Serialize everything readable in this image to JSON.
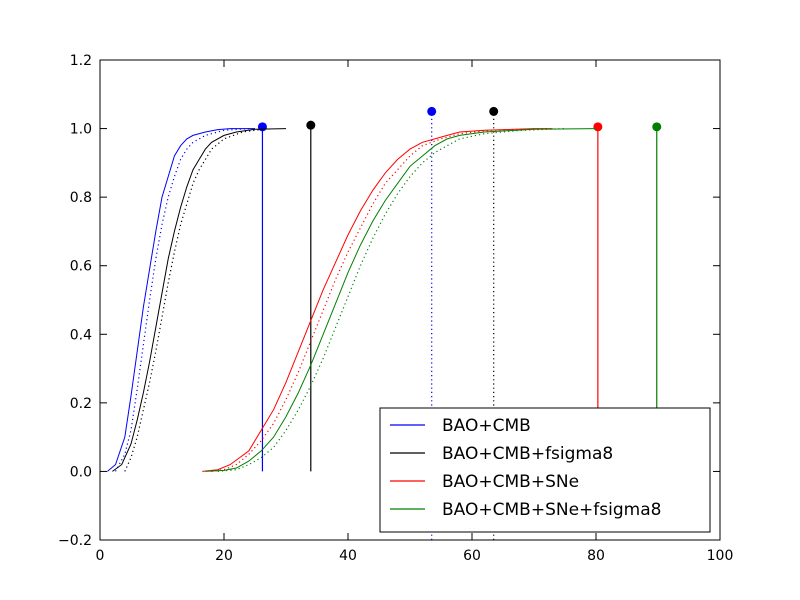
{
  "chart_data": {
    "type": "line",
    "title": "",
    "xlabel": "",
    "ylabel": "",
    "xlim": [
      0,
      100
    ],
    "ylim": [
      -0.2,
      1.2
    ],
    "x_ticks": [
      "0",
      "20",
      "40",
      "60",
      "80",
      "100"
    ],
    "y_ticks": [
      "−0.2",
      "0.0",
      "0.2",
      "0.4",
      "0.6",
      "0.8",
      "1.0",
      "1.2"
    ],
    "legend_position": "lower-right",
    "series": [
      {
        "name": "BAO+CMB",
        "color": "#0000ff",
        "solid": [
          [
            1.2,
            0
          ],
          [
            2.5,
            0.02
          ],
          [
            4,
            0.1
          ],
          [
            5,
            0.22
          ],
          [
            6,
            0.35
          ],
          [
            7,
            0.48
          ],
          [
            8,
            0.59
          ],
          [
            9,
            0.7
          ],
          [
            10,
            0.8
          ],
          [
            11,
            0.86
          ],
          [
            12,
            0.92
          ],
          [
            13,
            0.95
          ],
          [
            14,
            0.97
          ],
          [
            15,
            0.98
          ],
          [
            17,
            0.99
          ],
          [
            19,
            0.997
          ],
          [
            21,
            1.0
          ],
          [
            25,
            1.0
          ]
        ],
        "dotted": [
          [
            2.5,
            0
          ],
          [
            4,
            0.05
          ],
          [
            5,
            0.12
          ],
          [
            6,
            0.24
          ],
          [
            7,
            0.37
          ],
          [
            8,
            0.5
          ],
          [
            9,
            0.62
          ],
          [
            10,
            0.72
          ],
          [
            11,
            0.8
          ],
          [
            12,
            0.86
          ],
          [
            13,
            0.91
          ],
          [
            14,
            0.94
          ],
          [
            15,
            0.96
          ],
          [
            17,
            0.98
          ],
          [
            20,
            0.995
          ],
          [
            24,
            1.0
          ]
        ],
        "marker_solid": {
          "x": 26.2,
          "y": 1.005
        },
        "marker_dotted": {
          "x": 53.5,
          "y": 1.05
        }
      },
      {
        "name": "BAO+CMB+fsigma8",
        "color": "#000000",
        "solid": [
          [
            2,
            0
          ],
          [
            3.5,
            0.02
          ],
          [
            5,
            0.08
          ],
          [
            6,
            0.15
          ],
          [
            7,
            0.23
          ],
          [
            8,
            0.32
          ],
          [
            9,
            0.42
          ],
          [
            10,
            0.52
          ],
          [
            11,
            0.62
          ],
          [
            12,
            0.7
          ],
          [
            13,
            0.77
          ],
          [
            14,
            0.83
          ],
          [
            15,
            0.88
          ],
          [
            16,
            0.91
          ],
          [
            17,
            0.94
          ],
          [
            18,
            0.96
          ],
          [
            20,
            0.98
          ],
          [
            22,
            0.99
          ],
          [
            25,
            0.998
          ],
          [
            30,
            1.0
          ]
        ],
        "dotted": [
          [
            4,
            0
          ],
          [
            5,
            0.04
          ],
          [
            6,
            0.1
          ],
          [
            7,
            0.18
          ],
          [
            8,
            0.26
          ],
          [
            9,
            0.35
          ],
          [
            10,
            0.45
          ],
          [
            11,
            0.55
          ],
          [
            12,
            0.64
          ],
          [
            13,
            0.72
          ],
          [
            14,
            0.78
          ],
          [
            15,
            0.84
          ],
          [
            16,
            0.88
          ],
          [
            17,
            0.91
          ],
          [
            18,
            0.94
          ],
          [
            20,
            0.97
          ],
          [
            23,
            0.99
          ],
          [
            27,
            1.0
          ]
        ],
        "marker_solid": {
          "x": 34,
          "y": 1.01
        },
        "marker_dotted": {
          "x": 63.5,
          "y": 1.05
        }
      },
      {
        "name": "BAO+CMB+SNe",
        "color": "#ff0000",
        "solid": [
          [
            16.5,
            0
          ],
          [
            19,
            0.005
          ],
          [
            21,
            0.02
          ],
          [
            24,
            0.06
          ],
          [
            26,
            0.12
          ],
          [
            28,
            0.18
          ],
          [
            30,
            0.26
          ],
          [
            32,
            0.35
          ],
          [
            34,
            0.44
          ],
          [
            36,
            0.53
          ],
          [
            38,
            0.61
          ],
          [
            40,
            0.69
          ],
          [
            42,
            0.76
          ],
          [
            44,
            0.82
          ],
          [
            46,
            0.87
          ],
          [
            48,
            0.91
          ],
          [
            50,
            0.94
          ],
          [
            52,
            0.96
          ],
          [
            54,
            0.97
          ],
          [
            56,
            0.98
          ],
          [
            58,
            0.99
          ],
          [
            62,
            0.995
          ],
          [
            70,
            1.0
          ],
          [
            73,
            1.0
          ]
        ],
        "dotted": [
          [
            18,
            0
          ],
          [
            20,
            0.005
          ],
          [
            22,
            0.02
          ],
          [
            24,
            0.05
          ],
          [
            26,
            0.09
          ],
          [
            28,
            0.14
          ],
          [
            30,
            0.21
          ],
          [
            32,
            0.29
          ],
          [
            34,
            0.38
          ],
          [
            36,
            0.47
          ],
          [
            38,
            0.56
          ],
          [
            40,
            0.64
          ],
          [
            42,
            0.71
          ],
          [
            44,
            0.78
          ],
          [
            46,
            0.84
          ],
          [
            48,
            0.88
          ],
          [
            50,
            0.92
          ],
          [
            52,
            0.95
          ],
          [
            55,
            0.97
          ],
          [
            58,
            0.985
          ],
          [
            63,
            0.995
          ],
          [
            72,
            1.0
          ]
        ],
        "marker_solid": {
          "x": 80.3,
          "y": 1.005
        }
      },
      {
        "name": "BAO+CMB+SNe+fsigma8",
        "color": "#008000",
        "solid": [
          [
            17,
            0
          ],
          [
            20,
            0.003
          ],
          [
            22,
            0.01
          ],
          [
            24,
            0.03
          ],
          [
            26,
            0.06
          ],
          [
            28,
            0.1
          ],
          [
            30,
            0.16
          ],
          [
            32,
            0.23
          ],
          [
            34,
            0.31
          ],
          [
            36,
            0.4
          ],
          [
            38,
            0.49
          ],
          [
            40,
            0.58
          ],
          [
            42,
            0.66
          ],
          [
            44,
            0.73
          ],
          [
            46,
            0.79
          ],
          [
            48,
            0.84
          ],
          [
            50,
            0.89
          ],
          [
            52,
            0.92
          ],
          [
            54,
            0.95
          ],
          [
            56,
            0.97
          ],
          [
            58,
            0.98
          ],
          [
            62,
            0.99
          ],
          [
            70,
            0.998
          ],
          [
            80,
            1.0
          ]
        ],
        "dotted": [
          [
            19,
            0
          ],
          [
            22,
            0.005
          ],
          [
            24,
            0.02
          ],
          [
            26,
            0.04
          ],
          [
            28,
            0.07
          ],
          [
            30,
            0.12
          ],
          [
            32,
            0.18
          ],
          [
            34,
            0.25
          ],
          [
            36,
            0.33
          ],
          [
            38,
            0.42
          ],
          [
            40,
            0.51
          ],
          [
            42,
            0.6
          ],
          [
            44,
            0.68
          ],
          [
            46,
            0.75
          ],
          [
            48,
            0.81
          ],
          [
            50,
            0.86
          ],
          [
            52,
            0.9
          ],
          [
            54,
            0.93
          ],
          [
            56,
            0.95
          ],
          [
            58,
            0.97
          ],
          [
            62,
            0.985
          ],
          [
            68,
            0.995
          ],
          [
            75,
            1.0
          ]
        ],
        "marker_solid": {
          "x": 89.8,
          "y": 1.005
        }
      }
    ]
  }
}
